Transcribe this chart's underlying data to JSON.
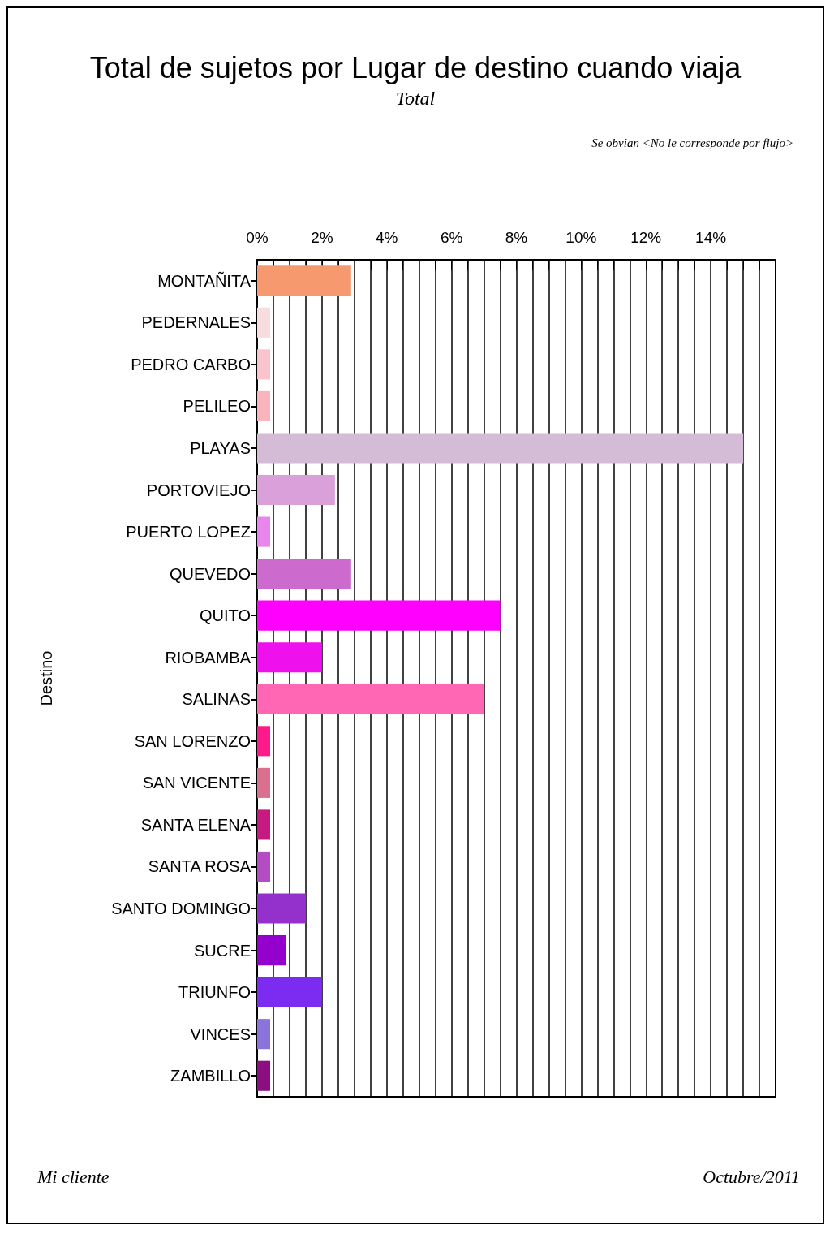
{
  "chart_data": {
    "type": "bar",
    "orientation": "horizontal",
    "title": "Total de sujetos por Lugar de destino cuando viaja",
    "subtitle": "Total",
    "ylabel": "Destino",
    "categories": [
      "MONTAÑITA",
      "PEDERNALES",
      "PEDRO CARBO",
      "PELILEO",
      "PLAYAS",
      "PORTOVIEJO",
      "PUERTO LOPEZ",
      "QUEVEDO",
      "QUITO",
      "RIOBAMBA",
      "SALINAS",
      "SAN LORENZO",
      "SAN VICENTE",
      "SANTA ELENA",
      "SANTA ROSA",
      "SANTO DOMINGO",
      "SUCRE",
      "TRIUNFO",
      "VINCES",
      "ZAMBILLO"
    ],
    "values": [
      2.9,
      0.4,
      0.4,
      0.4,
      15.0,
      2.4,
      0.4,
      2.9,
      7.5,
      2.0,
      7.0,
      0.4,
      0.4,
      0.4,
      0.4,
      1.5,
      0.9,
      2.0,
      0.4,
      0.4
    ],
    "colors": [
      "#f7996f",
      "#f8dde0",
      "#f9c4cc",
      "#f9b4bc",
      "#d4bcd6",
      "#d9a0da",
      "#e986ee",
      "#cc6acd",
      "#ff00ff",
      "#ef10ee",
      "#ff66b4",
      "#ff1a8c",
      "#db6f8f",
      "#c71a80",
      "#b44cc4",
      "#9430cc",
      "#9400cc",
      "#7b2cf0",
      "#8a74dc",
      "#8c0e80"
    ],
    "xlim": [
      0,
      16
    ],
    "xticks": [
      {
        "value": 0,
        "label": "0%"
      },
      {
        "value": 2,
        "label": "2%"
      },
      {
        "value": 4,
        "label": "4%"
      },
      {
        "value": 6,
        "label": "6%"
      },
      {
        "value": 8,
        "label": "8%"
      },
      {
        "value": 10,
        "label": "10%"
      },
      {
        "value": 12,
        "label": "12%"
      },
      {
        "value": 14,
        "label": "14%"
      }
    ],
    "grid": "x",
    "annotations": [
      "Se obvian <No le corresponde por flujo>",
      "Mi cliente",
      "Octubre/2011"
    ]
  }
}
